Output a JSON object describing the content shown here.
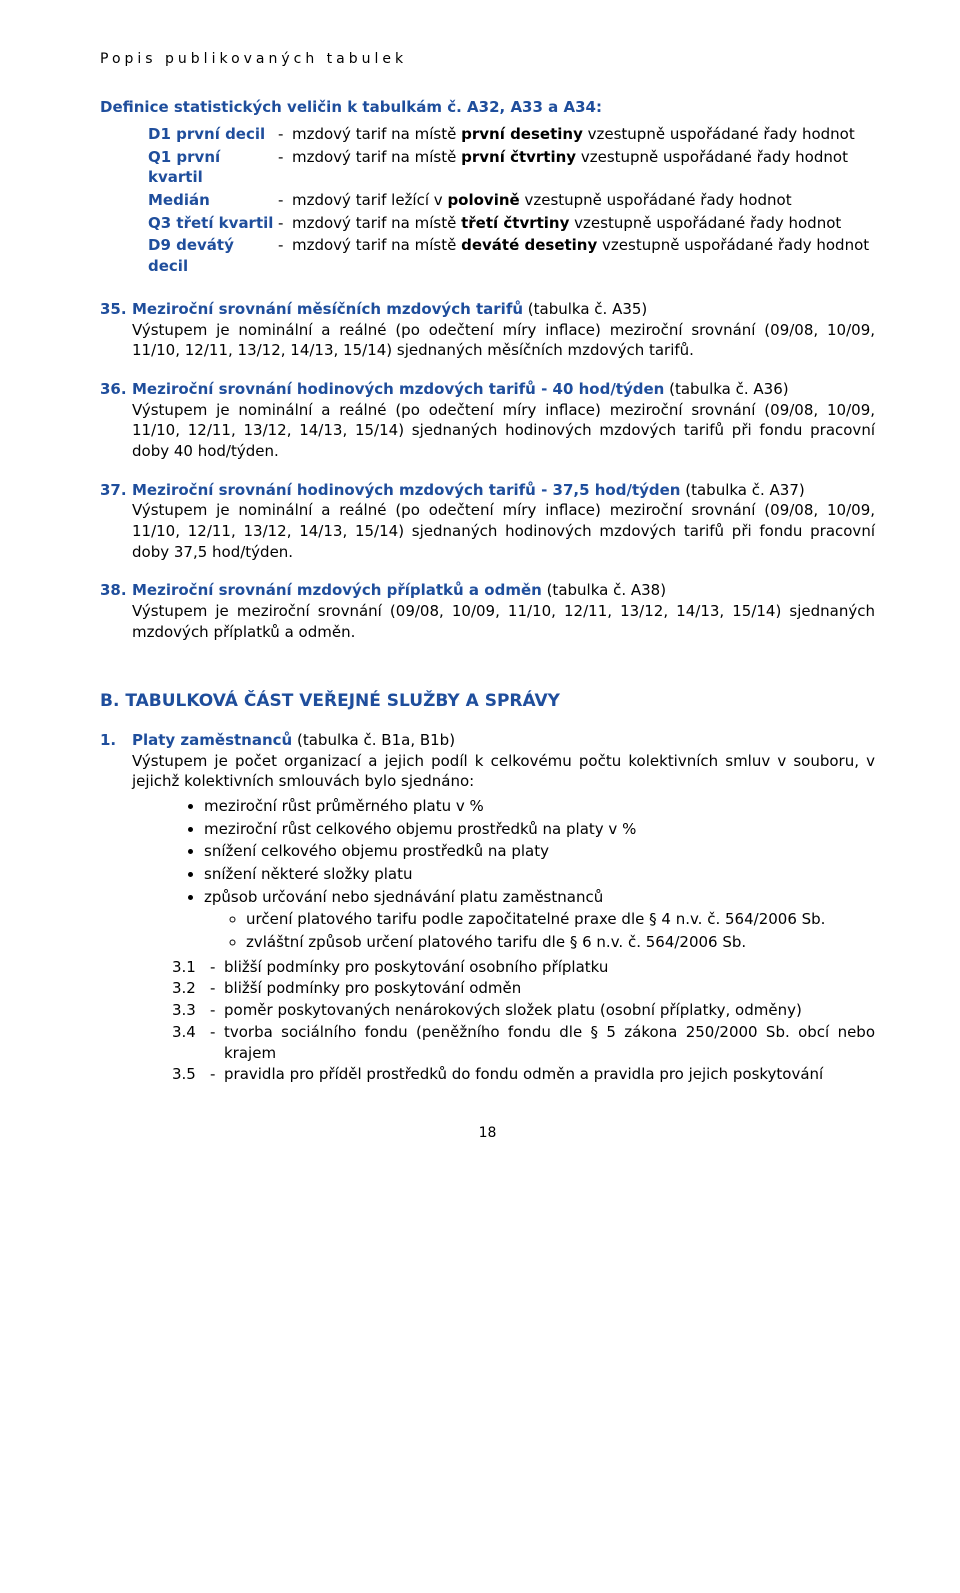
{
  "runningHead": "Popis publikovaných tabulek",
  "defHeader": "Definice statistických veličin k tabulkám č. A32, A33 a A34:",
  "definitions": [
    {
      "label": "D1 první decil",
      "text_a": "mzdový tarif na místě ",
      "text_b": "první desetiny",
      "text_c": " vzestupně uspořádané řady hodnot"
    },
    {
      "label": "Q1 první kvartil",
      "text_a": "mzdový tarif na místě ",
      "text_b": "první čtvrtiny",
      "text_c": " vzestupně uspořádané řady hodnot"
    },
    {
      "label": "Medián",
      "text_a": "mzdový tarif ležící v ",
      "text_b": "polovině",
      "text_c": " vzestupně uspořádané řady hodnot"
    },
    {
      "label": "Q3 třetí kvartil",
      "text_a": "mzdový tarif na místě ",
      "text_b": "třetí čtvrtiny",
      "text_c": " vzestupně uspořádané řady hodnot"
    },
    {
      "label": "D9 devátý decil",
      "text_a": "mzdový tarif na místě ",
      "text_b": "deváté desetiny",
      "text_c": " vzestupně uspořádané řady hodnot"
    }
  ],
  "sections": [
    {
      "num": "35.",
      "title": "Meziroční srovnání měsíčních mzdových tarifů",
      "tab": " (tabulka č. A35)",
      "body": "Výstupem je nominální a reálné (po odečtení míry inflace) meziroční srovnání (09/08, 10/09, 11/10, 12/11, 13/12, 14/13, 15/14) sjednaných měsíčních mzdových tarifů."
    },
    {
      "num": "36.",
      "title": "Meziroční srovnání hodinových mzdových tarifů - 40 hod/týden",
      "tab": " (tabulka č. A36)",
      "body": "Výstupem je nominální a reálné (po odečtení míry inflace) meziroční srovnání (09/08, 10/09, 11/10, 12/11, 13/12, 14/13, 15/14) sjednaných hodinových mzdových tarifů při fondu pracovní doby 40 hod/týden."
    },
    {
      "num": "37.",
      "title": "Meziroční srovnání hodinových mzdových tarifů - 37,5 hod/týden",
      "tab": " (tabulka č. A37)",
      "body": "Výstupem je nominální a reálné (po odečtení míry inflace) meziroční srovnání (09/08, 10/09, 11/10, 12/11, 13/12, 14/13, 15/14) sjednaných hodinových mzdových tarifů při fondu pracovní doby 37,5 hod/týden."
    },
    {
      "num": "38.",
      "title": "Meziroční srovnání mzdových příplatků a odměn",
      "tab": " (tabulka č. A38)",
      "body": "Výstupem je meziroční srovnání (09/08, 10/09, 11/10, 12/11, 13/12, 14/13, 15/14) sjednaných mzdových příplatků a odměn."
    }
  ],
  "subB": "B. TABULKOVÁ ČÁST VEŘEJNÉ SLUŽBY A SPRÁVY",
  "sec1": {
    "num": "1.",
    "title": "Platy zaměstnanců",
    "tab": " (tabulka č. B1a, B1b)",
    "lead": "Výstupem je počet organizací a jejich podíl k celkovému počtu kolektivních smluv v souboru, v jejichž kolektivních smlouvách bylo sjednáno:",
    "bullets": [
      "meziroční růst průměrného platu v %",
      "meziroční růst celkového objemu prostředků na platy v %",
      "snížení celkového objemu prostředků na platy",
      "snížení některé složky platu",
      "způsob určování nebo sjednávání platu zaměstnanců"
    ],
    "circles": [
      "určení platového tarifu podle započitatelné praxe dle § 4 n.v. č. 564/2006 Sb.",
      "zvláštní způsob určení platového tarifu dle § 6 n.v. č. 564/2006 Sb."
    ],
    "numrows": [
      {
        "n": "3.1",
        "t": "bližší podmínky pro poskytování osobního příplatku"
      },
      {
        "n": "3.2",
        "t": "bližší podmínky pro poskytování odměn"
      },
      {
        "n": "3.3",
        "t": "poměr poskytovaných nenárokových složek platu (osobní příplatky, odměny)"
      },
      {
        "n": "3.4",
        "t": "tvorba sociálního fondu (peněžního fondu dle § 5 zákona 250/2000 Sb. obcí nebo krajem"
      },
      {
        "n": "3.5",
        "t": "pravidla pro příděl prostředků do fondu odměn a pravidla pro jejich poskytování"
      }
    ]
  },
  "pageNum": "18"
}
